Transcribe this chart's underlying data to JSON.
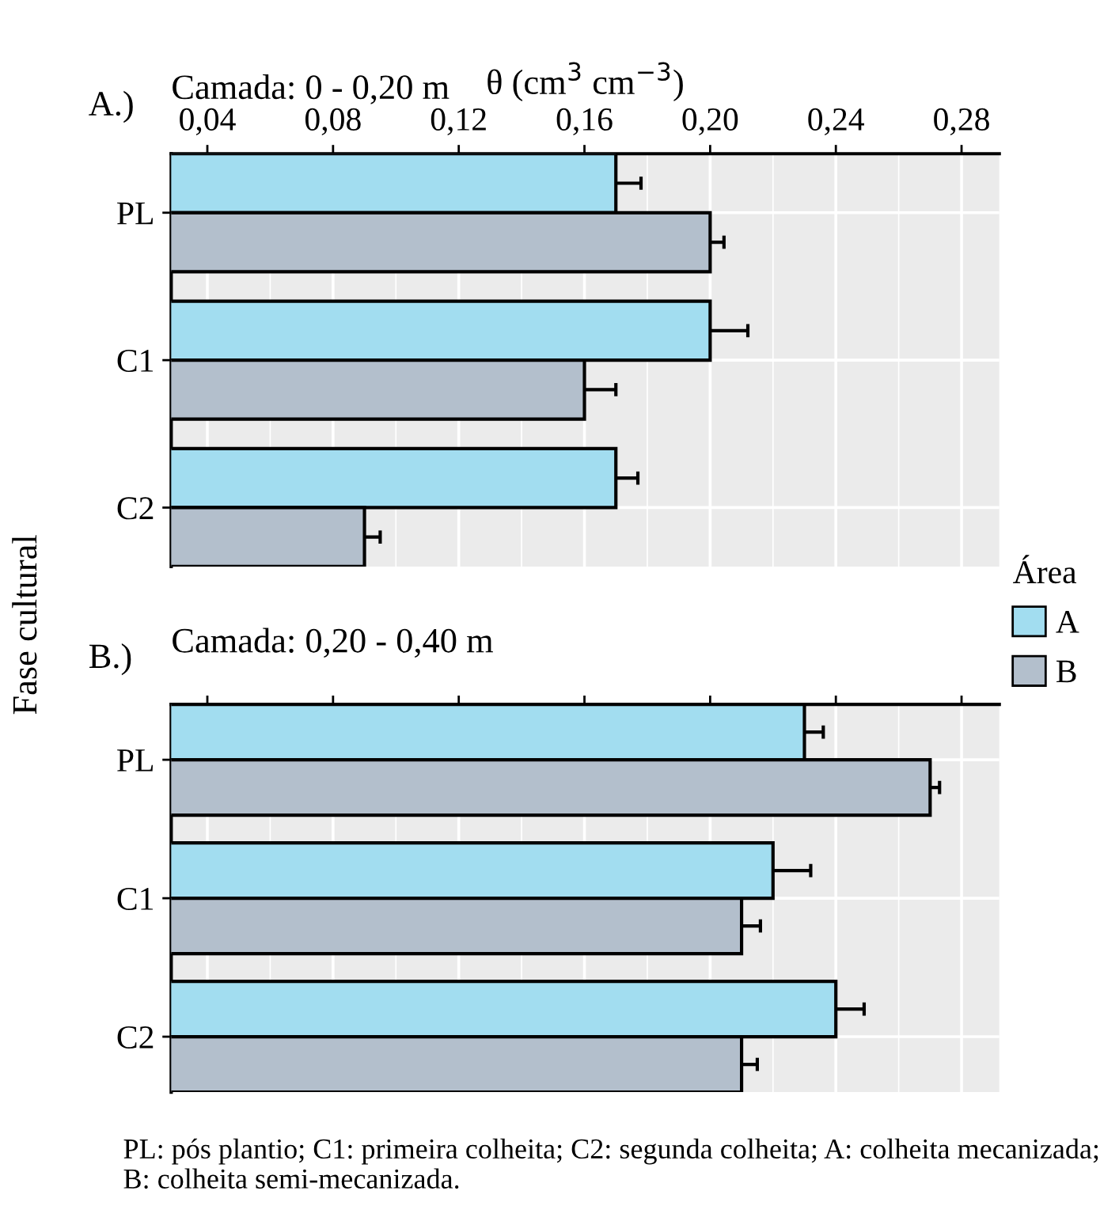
{
  "chart_data": [
    {
      "type": "bar",
      "orientation": "horizontal",
      "title": "A.)",
      "subtitle": "Camada: 0 - 0,20 m",
      "xlabel": "θ (cm$^{3}$ cm$^{−3}$)",
      "ylabel": "Fase cultural",
      "legend_title": "Área",
      "legend": "right",
      "grid": true,
      "categories": [
        "PL",
        "C1",
        "C2"
      ],
      "xlim": [
        0.0285,
        0.292
      ],
      "xticks": [
        {
          "value": 0.04,
          "label": "0,04"
        },
        {
          "value": 0.08,
          "label": "0,08"
        },
        {
          "value": 0.12,
          "label": "0,12"
        },
        {
          "value": 0.16,
          "label": "0,16"
        },
        {
          "value": 0.2,
          "label": "0,20"
        },
        {
          "value": 0.24,
          "label": "0,24"
        },
        {
          "value": 0.28,
          "label": "0,28"
        }
      ],
      "series": [
        {
          "name": "A",
          "color": "#a2ddf0",
          "values": [
            0.17,
            0.2,
            0.17
          ],
          "errors": [
            0.008,
            0.012,
            0.007
          ]
        },
        {
          "name": "B",
          "color": "#b3bfcc",
          "values": [
            0.2,
            0.16,
            0.09
          ],
          "errors": [
            0.0044,
            0.01,
            0.005
          ]
        }
      ]
    },
    {
      "type": "bar",
      "orientation": "horizontal",
      "title": "B.)",
      "subtitle": "Camada: 0,20 - 0,40 m",
      "grid": true,
      "tick_labels": "y",
      "categories": [
        "PL",
        "C1",
        "C2"
      ],
      "xlim": [
        0.0285,
        0.292
      ],
      "xticks": [
        {
          "value": 0.04,
          "label": null
        },
        {
          "value": 0.08,
          "label": null
        },
        {
          "value": 0.12,
          "label": null
        },
        {
          "value": 0.16,
          "label": null
        },
        {
          "value": 0.2,
          "label": null
        },
        {
          "value": 0.24,
          "label": null
        },
        {
          "value": 0.28,
          "label": null
        }
      ],
      "series": [
        {
          "color": "#a2ddf0",
          "values": [
            0.23,
            0.22,
            0.24
          ],
          "errors": [
            0.006,
            0.012,
            0.009
          ]
        },
        {
          "color": "#b3bfcc",
          "values": [
            0.27,
            0.21,
            0.21
          ],
          "errors": [
            0.003,
            0.006,
            0.005
          ]
        }
      ],
      "annotations": [
        "PL: pós plantio; C1: primeira colheita; C2: segunda colheita; A: colheita mecanizada; B: colheita semi-mecanizada."
      ]
    }
  ]
}
